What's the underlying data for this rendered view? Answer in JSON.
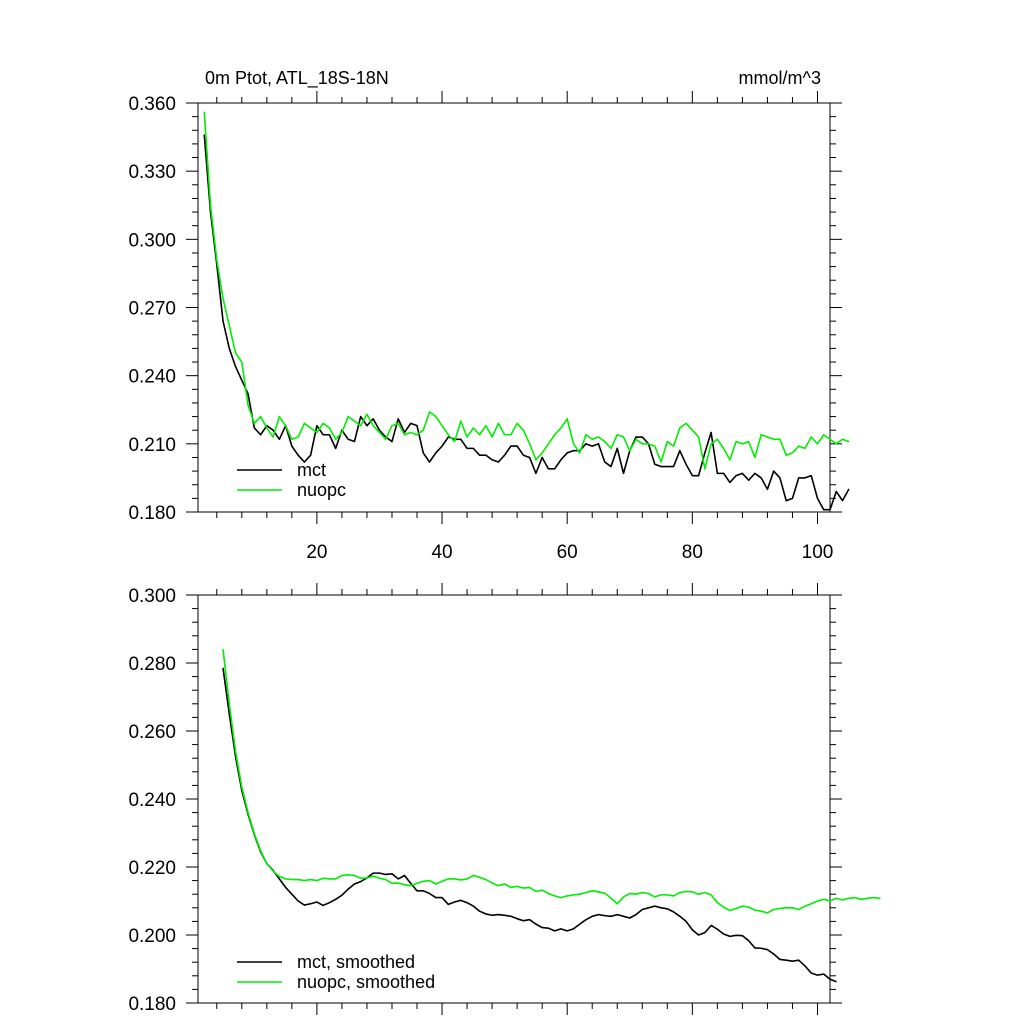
{
  "chart_data": [
    {
      "type": "line",
      "title": "0m Ptot, ATL_18S-18N",
      "units": "mmol/m^3",
      "xlim": [
        1,
        102
      ],
      "ylim": [
        0.18,
        0.36
      ],
      "xticks": [
        20,
        40,
        60,
        80,
        100
      ],
      "xtick_labels": [
        "20",
        "40",
        "60",
        "80",
        "100"
      ],
      "yticks": [
        0.18,
        0.21,
        0.24,
        0.27,
        0.3,
        0.33,
        0.36
      ],
      "ytick_labels": [
        "0.180",
        "0.210",
        "0.240",
        "0.270",
        "0.300",
        "0.330",
        "0.360"
      ],
      "legend_position": "bottom-left",
      "series": [
        {
          "name": "mct",
          "color": "#000000",
          "x_start": 2,
          "values": [
            0.346,
            0.312,
            0.289,
            0.264,
            0.252,
            0.244,
            0.238,
            0.232,
            0.217,
            0.214,
            0.218,
            0.216,
            0.212,
            0.218,
            0.209,
            0.205,
            0.202,
            0.205,
            0.218,
            0.214,
            0.214,
            0.208,
            0.216,
            0.212,
            0.211,
            0.222,
            0.218,
            0.221,
            0.216,
            0.213,
            0.211,
            0.221,
            0.215,
            0.219,
            0.218,
            0.206,
            0.202,
            0.206,
            0.209,
            0.213,
            0.212,
            0.212,
            0.208,
            0.208,
            0.205,
            0.205,
            0.203,
            0.202,
            0.205,
            0.209,
            0.209,
            0.205,
            0.204,
            0.197,
            0.204,
            0.199,
            0.199,
            0.203,
            0.206,
            0.207,
            0.207,
            0.21,
            0.209,
            0.21,
            0.202,
            0.2,
            0.208,
            0.197,
            0.207,
            0.213,
            0.213,
            0.21,
            0.201,
            0.2,
            0.2,
            0.2,
            0.207,
            0.201,
            0.196,
            0.196,
            0.206,
            0.215,
            0.197,
            0.197,
            0.193,
            0.196,
            0.197,
            0.194,
            0.197,
            0.195,
            0.19,
            0.198,
            0.195,
            0.185,
            0.186,
            0.195,
            0.195,
            0.196,
            0.186,
            0.181,
            0.181,
            0.189,
            0.185,
            0.19
          ]
        },
        {
          "name": "nuopc",
          "color": "#00ee00",
          "x_start": 2,
          "values": [
            0.356,
            0.315,
            0.291,
            0.274,
            0.262,
            0.25,
            0.246,
            0.227,
            0.219,
            0.222,
            0.217,
            0.213,
            0.222,
            0.218,
            0.212,
            0.213,
            0.219,
            0.217,
            0.215,
            0.219,
            0.217,
            0.212,
            0.215,
            0.222,
            0.22,
            0.218,
            0.223,
            0.218,
            0.215,
            0.212,
            0.218,
            0.219,
            0.214,
            0.215,
            0.214,
            0.216,
            0.224,
            0.222,
            0.218,
            0.214,
            0.211,
            0.22,
            0.213,
            0.217,
            0.214,
            0.218,
            0.213,
            0.219,
            0.214,
            0.214,
            0.219,
            0.216,
            0.21,
            0.203,
            0.206,
            0.21,
            0.214,
            0.217,
            0.221,
            0.21,
            0.206,
            0.214,
            0.212,
            0.213,
            0.211,
            0.208,
            0.214,
            0.213,
            0.207,
            0.212,
            0.21,
            0.21,
            0.209,
            0.202,
            0.211,
            0.209,
            0.217,
            0.219,
            0.216,
            0.213,
            0.199,
            0.21,
            0.212,
            0.208,
            0.203,
            0.211,
            0.21,
            0.211,
            0.204,
            0.214,
            0.213,
            0.212,
            0.212,
            0.205,
            0.206,
            0.209,
            0.208,
            0.213,
            0.21,
            0.214,
            0.212,
            0.21,
            0.212,
            0.211
          ]
        }
      ]
    },
    {
      "type": "line",
      "title": "",
      "units": "",
      "xlim": [
        1,
        102
      ],
      "ylim": [
        0.18,
        0.3
      ],
      "xticks": [
        20,
        40,
        60,
        80,
        100
      ],
      "xtick_labels": [
        "",
        "",
        "",
        "",
        ""
      ],
      "yticks": [
        0.18,
        0.2,
        0.22,
        0.24,
        0.26,
        0.28,
        0.3
      ],
      "ytick_labels": [
        "0.180",
        "0.200",
        "0.220",
        "0.240",
        "0.260",
        "0.280",
        "0.300"
      ],
      "legend_position": "bottom-left",
      "series": [
        {
          "name": "mct, smoothed",
          "color": "#000000",
          "x_start": 5,
          "values": [
            0.2785,
            0.265,
            0.2525,
            0.2425,
            0.2355,
            0.2295,
            0.2245,
            0.221,
            0.219,
            0.2165,
            0.214,
            0.212,
            0.21,
            0.2088,
            0.2092,
            0.2097,
            0.2087,
            0.2095,
            0.2105,
            0.2117,
            0.2135,
            0.215,
            0.2157,
            0.2168,
            0.2182,
            0.2182,
            0.2178,
            0.218,
            0.2165,
            0.2175,
            0.2152,
            0.213,
            0.213,
            0.2122,
            0.211,
            0.211,
            0.209,
            0.2097,
            0.2102,
            0.2095,
            0.2085,
            0.207,
            0.2062,
            0.2058,
            0.206,
            0.2058,
            0.2055,
            0.2048,
            0.2042,
            0.2045,
            0.2032,
            0.2022,
            0.202,
            0.2012,
            0.2018,
            0.2012,
            0.2018,
            0.2032,
            0.2045,
            0.2055,
            0.206,
            0.2057,
            0.2055,
            0.206,
            0.2055,
            0.205,
            0.206,
            0.2075,
            0.208,
            0.2085,
            0.208,
            0.2077,
            0.2068,
            0.2055,
            0.204,
            0.2015,
            0.2,
            0.2007,
            0.2028,
            0.2017,
            0.2003,
            0.1996,
            0.1999,
            0.1998,
            0.1983,
            0.1962,
            0.1961,
            0.1957,
            0.1944,
            0.1928,
            0.1926,
            0.1923,
            0.1926,
            0.1909,
            0.1888,
            0.1882,
            0.1885,
            0.187,
            0.1863
          ]
        },
        {
          "name": "nuopc, smoothed",
          "color": "#00ee00",
          "x_start": 5,
          "values": [
            0.284,
            0.268,
            0.254,
            0.2435,
            0.236,
            0.2298,
            0.2248,
            0.221,
            0.2188,
            0.2172,
            0.2165,
            0.2163,
            0.2163,
            0.216,
            0.2163,
            0.216,
            0.2167,
            0.2165,
            0.2165,
            0.2175,
            0.2177,
            0.2175,
            0.2167,
            0.2168,
            0.2173,
            0.2167,
            0.2163,
            0.2152,
            0.2153,
            0.2148,
            0.2145,
            0.2152,
            0.2158,
            0.216,
            0.215,
            0.2158,
            0.2165,
            0.2165,
            0.2162,
            0.2165,
            0.2175,
            0.217,
            0.2163,
            0.2153,
            0.2145,
            0.215,
            0.214,
            0.2143,
            0.2138,
            0.214,
            0.2128,
            0.2132,
            0.2122,
            0.2115,
            0.211,
            0.2115,
            0.2118,
            0.212,
            0.2125,
            0.213,
            0.2127,
            0.2123,
            0.2108,
            0.2092,
            0.2112,
            0.2122,
            0.212,
            0.2125,
            0.2122,
            0.2112,
            0.2118,
            0.2118,
            0.2115,
            0.2125,
            0.2128,
            0.2127,
            0.212,
            0.2125,
            0.2118,
            0.2095,
            0.2082,
            0.2072,
            0.2078,
            0.2085,
            0.2082,
            0.2073,
            0.207,
            0.2065,
            0.2075,
            0.2078,
            0.208,
            0.208,
            0.2075,
            0.2085,
            0.2092,
            0.21,
            0.2105,
            0.21,
            0.2108,
            0.2103,
            0.2108,
            0.211,
            0.2105,
            0.2108,
            0.211,
            0.2108
          ]
        }
      ]
    }
  ]
}
